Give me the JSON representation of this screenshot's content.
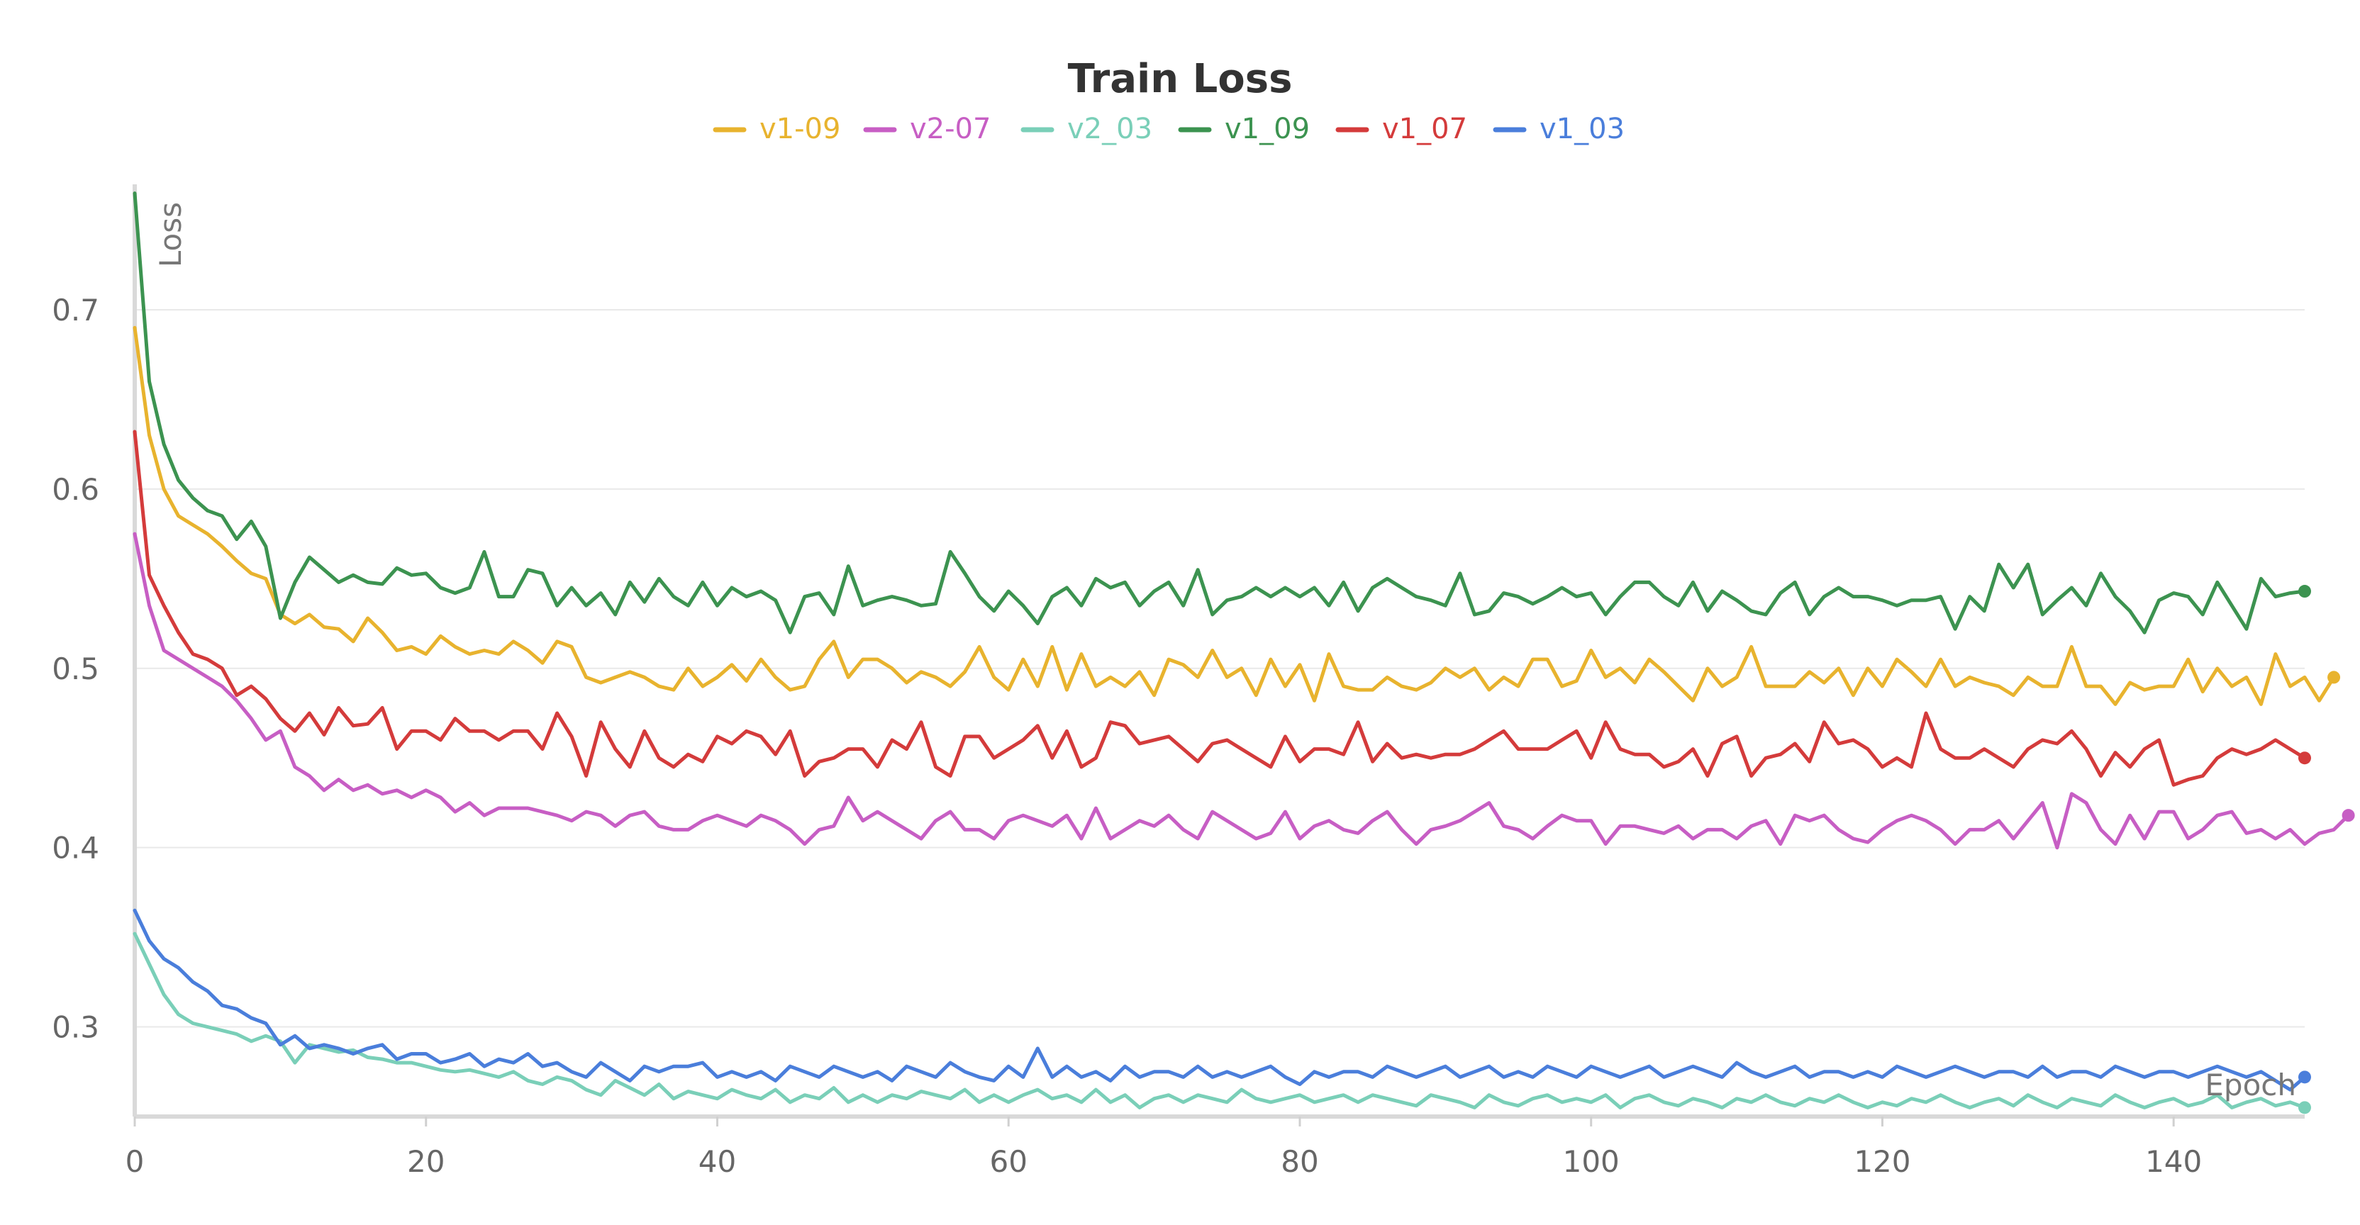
{
  "chart_data": {
    "type": "line",
    "title": "Train Loss",
    "xlabel": "Epoch",
    "ylabel": "Loss",
    "xlim": [
      0,
      149
    ],
    "ylim": [
      0.25,
      0.77
    ],
    "xticks": [
      0,
      20,
      40,
      60,
      80,
      100,
      120,
      140
    ],
    "yticks": [
      0.3,
      0.4,
      0.5,
      0.6,
      0.7
    ],
    "grid": "horizontal",
    "legend_position": "top-center",
    "series": [
      {
        "name": "v1-09",
        "color": "#E8B32E",
        "values": [
          0.69,
          0.63,
          0.6,
          0.585,
          0.58,
          0.575,
          0.568,
          0.56,
          0.553,
          0.55,
          0.53,
          0.525,
          0.53,
          0.523,
          0.522,
          0.515,
          0.528,
          0.52,
          0.51,
          0.512,
          0.508,
          0.518,
          0.512,
          0.508,
          0.51,
          0.508,
          0.515,
          0.51,
          0.503,
          0.515,
          0.512,
          0.495,
          0.492,
          0.495,
          0.498,
          0.495,
          0.49,
          0.488,
          0.5,
          0.49,
          0.495,
          0.502,
          0.493,
          0.505,
          0.495,
          0.488,
          0.49,
          0.505,
          0.515,
          0.495,
          0.505,
          0.505,
          0.5,
          0.492,
          0.498,
          0.495,
          0.49,
          0.498,
          0.512,
          0.495,
          0.488,
          0.505,
          0.49,
          0.512,
          0.488,
          0.508,
          0.49,
          0.495,
          0.49,
          0.498,
          0.485,
          0.505,
          0.502,
          0.495,
          0.51,
          0.495,
          0.5,
          0.485,
          0.505,
          0.49,
          0.502,
          0.482,
          0.508,
          0.49,
          0.488,
          0.488,
          0.495,
          0.49,
          0.488,
          0.492,
          0.5,
          0.495,
          0.5,
          0.488,
          0.495,
          0.49,
          0.505,
          0.505,
          0.49,
          0.493,
          0.51,
          0.495,
          0.5,
          0.492,
          0.505,
          0.498,
          0.49,
          0.482,
          0.5,
          0.49,
          0.495,
          0.512,
          0.49,
          0.49,
          0.49,
          0.498,
          0.492,
          0.5,
          0.485,
          0.5,
          0.49,
          0.505,
          0.498,
          0.49,
          0.505,
          0.49,
          0.495,
          0.492,
          0.49,
          0.485,
          0.495,
          0.49,
          0.49,
          0.512,
          0.49,
          0.49,
          0.48,
          0.492,
          0.488,
          0.49,
          0.49,
          0.505,
          0.487,
          0.5,
          0.49,
          0.495,
          0.48,
          0.508,
          0.49,
          0.495,
          0.482,
          0.495
        ]
      },
      {
        "name": "v2-07",
        "color": "#C75EC4",
        "values": [
          0.575,
          0.535,
          0.51,
          0.505,
          0.5,
          0.495,
          0.49,
          0.482,
          0.472,
          0.46,
          0.465,
          0.445,
          0.44,
          0.432,
          0.438,
          0.432,
          0.435,
          0.43,
          0.432,
          0.428,
          0.432,
          0.428,
          0.42,
          0.425,
          0.418,
          0.422,
          0.422,
          0.422,
          0.42,
          0.418,
          0.415,
          0.42,
          0.418,
          0.412,
          0.418,
          0.42,
          0.412,
          0.41,
          0.41,
          0.415,
          0.418,
          0.415,
          0.412,
          0.418,
          0.415,
          0.41,
          0.402,
          0.41,
          0.412,
          0.428,
          0.415,
          0.42,
          0.415,
          0.41,
          0.405,
          0.415,
          0.42,
          0.41,
          0.41,
          0.405,
          0.415,
          0.418,
          0.415,
          0.412,
          0.418,
          0.405,
          0.422,
          0.405,
          0.41,
          0.415,
          0.412,
          0.418,
          0.41,
          0.405,
          0.42,
          0.415,
          0.41,
          0.405,
          0.408,
          0.42,
          0.405,
          0.412,
          0.415,
          0.41,
          0.408,
          0.415,
          0.42,
          0.41,
          0.402,
          0.41,
          0.412,
          0.415,
          0.42,
          0.425,
          0.412,
          0.41,
          0.405,
          0.412,
          0.418,
          0.415,
          0.415,
          0.402,
          0.412,
          0.412,
          0.41,
          0.408,
          0.412,
          0.405,
          0.41,
          0.41,
          0.405,
          0.412,
          0.415,
          0.402,
          0.418,
          0.415,
          0.418,
          0.41,
          0.405,
          0.403,
          0.41,
          0.415,
          0.418,
          0.415,
          0.41,
          0.402,
          0.41,
          0.41,
          0.415,
          0.405,
          0.415,
          0.425,
          0.4,
          0.43,
          0.425,
          0.41,
          0.402,
          0.418,
          0.405,
          0.42,
          0.42,
          0.405,
          0.41,
          0.418,
          0.42,
          0.408,
          0.41,
          0.405,
          0.41,
          0.402,
          0.408,
          0.41,
          0.418
        ]
      },
      {
        "name": "v2_03",
        "color": "#7ACFB8",
        "values": [
          0.352,
          0.335,
          0.318,
          0.307,
          0.302,
          0.3,
          0.298,
          0.296,
          0.292,
          0.295,
          0.292,
          0.28,
          0.29,
          0.288,
          0.286,
          0.287,
          0.283,
          0.282,
          0.28,
          0.28,
          0.278,
          0.276,
          0.275,
          0.276,
          0.274,
          0.272,
          0.275,
          0.27,
          0.268,
          0.272,
          0.27,
          0.265,
          0.262,
          0.27,
          0.266,
          0.262,
          0.268,
          0.26,
          0.264,
          0.262,
          0.26,
          0.265,
          0.262,
          0.26,
          0.265,
          0.258,
          0.262,
          0.26,
          0.266,
          0.258,
          0.262,
          0.258,
          0.262,
          0.26,
          0.264,
          0.262,
          0.26,
          0.265,
          0.258,
          0.262,
          0.258,
          0.262,
          0.265,
          0.26,
          0.262,
          0.258,
          0.265,
          0.258,
          0.262,
          0.255,
          0.26,
          0.262,
          0.258,
          0.262,
          0.26,
          0.258,
          0.265,
          0.26,
          0.258,
          0.26,
          0.262,
          0.258,
          0.26,
          0.262,
          0.258,
          0.262,
          0.26,
          0.258,
          0.256,
          0.262,
          0.26,
          0.258,
          0.255,
          0.262,
          0.258,
          0.256,
          0.26,
          0.262,
          0.258,
          0.26,
          0.258,
          0.262,
          0.255,
          0.26,
          0.262,
          0.258,
          0.256,
          0.26,
          0.258,
          0.255,
          0.26,
          0.258,
          0.262,
          0.258,
          0.256,
          0.26,
          0.258,
          0.262,
          0.258,
          0.255,
          0.258,
          0.256,
          0.26,
          0.258,
          0.262,
          0.258,
          0.255,
          0.258,
          0.26,
          0.256,
          0.262,
          0.258,
          0.255,
          0.26,
          0.258,
          0.256,
          0.262,
          0.258,
          0.255,
          0.258,
          0.26,
          0.256,
          0.258,
          0.262,
          0.255,
          0.258,
          0.26,
          0.256,
          0.258,
          0.255
        ]
      },
      {
        "name": "v1_09",
        "color": "#3C9350",
        "values": [
          0.765,
          0.66,
          0.625,
          0.605,
          0.595,
          0.588,
          0.585,
          0.572,
          0.582,
          0.568,
          0.528,
          0.548,
          0.562,
          0.555,
          0.548,
          0.552,
          0.548,
          0.547,
          0.556,
          0.552,
          0.553,
          0.545,
          0.542,
          0.545,
          0.565,
          0.54,
          0.54,
          0.555,
          0.553,
          0.535,
          0.545,
          0.535,
          0.542,
          0.53,
          0.548,
          0.537,
          0.55,
          0.54,
          0.535,
          0.548,
          0.535,
          0.545,
          0.54,
          0.543,
          0.538,
          0.52,
          0.54,
          0.542,
          0.53,
          0.557,
          0.535,
          0.538,
          0.54,
          0.538,
          0.535,
          0.536,
          0.565,
          0.553,
          0.54,
          0.532,
          0.543,
          0.535,
          0.525,
          0.54,
          0.545,
          0.535,
          0.55,
          0.545,
          0.548,
          0.535,
          0.543,
          0.548,
          0.535,
          0.555,
          0.53,
          0.538,
          0.54,
          0.545,
          0.54,
          0.545,
          0.54,
          0.545,
          0.535,
          0.548,
          0.532,
          0.545,
          0.55,
          0.545,
          0.54,
          0.538,
          0.535,
          0.553,
          0.53,
          0.532,
          0.542,
          0.54,
          0.536,
          0.54,
          0.545,
          0.54,
          0.542,
          0.53,
          0.54,
          0.548,
          0.548,
          0.54,
          0.535,
          0.548,
          0.532,
          0.543,
          0.538,
          0.532,
          0.53,
          0.542,
          0.548,
          0.53,
          0.54,
          0.545,
          0.54,
          0.54,
          0.538,
          0.535,
          0.538,
          0.538,
          0.54,
          0.522,
          0.54,
          0.532,
          0.558,
          0.545,
          0.558,
          0.53,
          0.538,
          0.545,
          0.535,
          0.553,
          0.54,
          0.532,
          0.52,
          0.538,
          0.542,
          0.54,
          0.53,
          0.548,
          0.535,
          0.522,
          0.55,
          0.54,
          0.542,
          0.543
        ]
      },
      {
        "name": "v1_07",
        "color": "#D43B3B",
        "values": [
          0.632,
          0.552,
          0.535,
          0.52,
          0.508,
          0.505,
          0.5,
          0.485,
          0.49,
          0.483,
          0.472,
          0.465,
          0.475,
          0.463,
          0.478,
          0.468,
          0.469,
          0.478,
          0.455,
          0.465,
          0.465,
          0.46,
          0.472,
          0.465,
          0.465,
          0.46,
          0.465,
          0.465,
          0.455,
          0.475,
          0.462,
          0.44,
          0.47,
          0.455,
          0.445,
          0.465,
          0.45,
          0.445,
          0.452,
          0.448,
          0.462,
          0.458,
          0.465,
          0.462,
          0.452,
          0.465,
          0.44,
          0.448,
          0.45,
          0.455,
          0.455,
          0.445,
          0.46,
          0.455,
          0.47,
          0.445,
          0.44,
          0.462,
          0.462,
          0.45,
          0.455,
          0.46,
          0.468,
          0.45,
          0.465,
          0.445,
          0.45,
          0.47,
          0.468,
          0.458,
          0.46,
          0.462,
          0.455,
          0.448,
          0.458,
          0.46,
          0.455,
          0.45,
          0.445,
          0.462,
          0.448,
          0.455,
          0.455,
          0.452,
          0.47,
          0.448,
          0.458,
          0.45,
          0.452,
          0.45,
          0.452,
          0.452,
          0.455,
          0.46,
          0.465,
          0.455,
          0.455,
          0.455,
          0.46,
          0.465,
          0.45,
          0.47,
          0.455,
          0.452,
          0.452,
          0.445,
          0.448,
          0.455,
          0.44,
          0.458,
          0.462,
          0.44,
          0.45,
          0.452,
          0.458,
          0.448,
          0.47,
          0.458,
          0.46,
          0.455,
          0.445,
          0.45,
          0.445,
          0.475,
          0.455,
          0.45,
          0.45,
          0.455,
          0.45,
          0.445,
          0.455,
          0.46,
          0.458,
          0.465,
          0.455,
          0.44,
          0.453,
          0.445,
          0.455,
          0.46,
          0.435,
          0.438,
          0.44,
          0.45,
          0.455,
          0.452,
          0.455,
          0.46,
          0.455,
          0.45
        ]
      },
      {
        "name": "v1_03",
        "color": "#4A7EDB",
        "values": [
          0.365,
          0.348,
          0.338,
          0.333,
          0.325,
          0.32,
          0.312,
          0.31,
          0.305,
          0.302,
          0.29,
          0.295,
          0.288,
          0.29,
          0.288,
          0.285,
          0.288,
          0.29,
          0.282,
          0.285,
          0.285,
          0.28,
          0.282,
          0.285,
          0.278,
          0.282,
          0.28,
          0.285,
          0.278,
          0.28,
          0.275,
          0.272,
          0.28,
          0.275,
          0.27,
          0.278,
          0.275,
          0.278,
          0.278,
          0.28,
          0.272,
          0.275,
          0.272,
          0.275,
          0.27,
          0.278,
          0.275,
          0.272,
          0.278,
          0.275,
          0.272,
          0.275,
          0.27,
          0.278,
          0.275,
          0.272,
          0.28,
          0.275,
          0.272,
          0.27,
          0.278,
          0.272,
          0.288,
          0.272,
          0.278,
          0.272,
          0.275,
          0.27,
          0.278,
          0.272,
          0.275,
          0.275,
          0.272,
          0.278,
          0.272,
          0.275,
          0.272,
          0.275,
          0.278,
          0.272,
          0.268,
          0.275,
          0.272,
          0.275,
          0.275,
          0.272,
          0.278,
          0.275,
          0.272,
          0.275,
          0.278,
          0.272,
          0.275,
          0.278,
          0.272,
          0.275,
          0.272,
          0.278,
          0.275,
          0.272,
          0.278,
          0.275,
          0.272,
          0.275,
          0.278,
          0.272,
          0.275,
          0.278,
          0.275,
          0.272,
          0.28,
          0.275,
          0.272,
          0.275,
          0.278,
          0.272,
          0.275,
          0.275,
          0.272,
          0.275,
          0.272,
          0.278,
          0.275,
          0.272,
          0.275,
          0.278,
          0.275,
          0.272,
          0.275,
          0.275,
          0.272,
          0.278,
          0.272,
          0.275,
          0.275,
          0.272,
          0.278,
          0.275,
          0.272,
          0.275,
          0.275,
          0.272,
          0.275,
          0.278,
          0.275,
          0.272,
          0.275,
          0.27,
          0.265,
          0.272
        ]
      }
    ]
  }
}
